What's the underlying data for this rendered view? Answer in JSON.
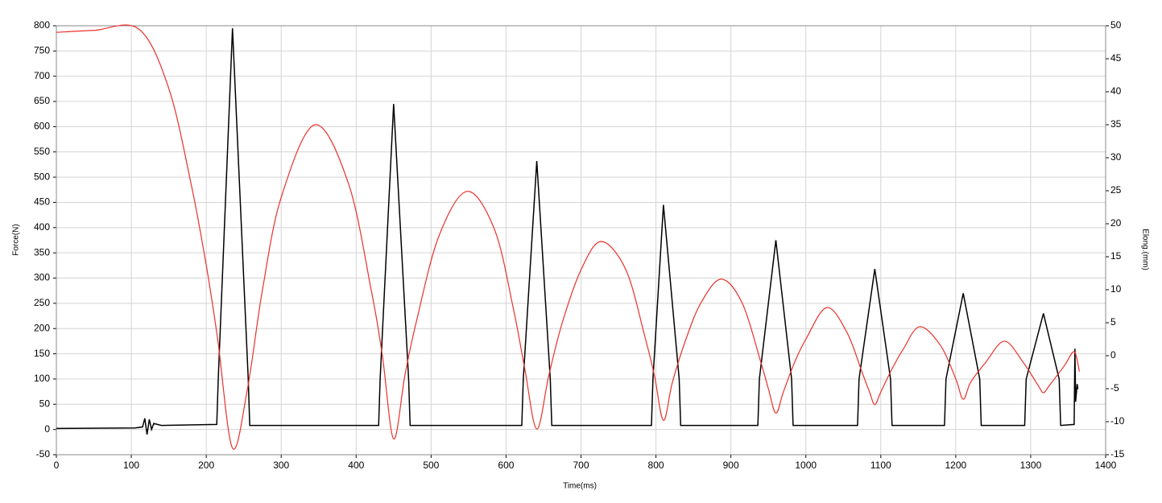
{
  "chart_data": {
    "type": "line",
    "xlabel": "Time(ms)",
    "ylabel": "Force(N)",
    "y2label": "Elong.(mm)",
    "xlim": [
      0,
      1400
    ],
    "xticks": [
      0,
      100,
      200,
      300,
      400,
      500,
      600,
      700,
      800,
      900,
      1000,
      1100,
      1200,
      1300,
      1400
    ],
    "ylim": [
      -50,
      800
    ],
    "yticks": [
      -50,
      0,
      50,
      100,
      150,
      200,
      250,
      300,
      350,
      400,
      450,
      500,
      550,
      600,
      650,
      700,
      750,
      800
    ],
    "y2lim": [
      -15,
      50
    ],
    "y2ticks": [
      -15,
      -10,
      -5,
      0,
      5,
      10,
      15,
      20,
      25,
      30,
      35,
      40,
      45,
      50
    ],
    "grid": true,
    "series": [
      {
        "color": "#000000",
        "axis": "y",
        "x": [
          0,
          105,
          115,
          118,
          121,
          124,
          127,
          130,
          140,
          214,
          216,
          235,
          256,
          258,
          430,
          432,
          450,
          470,
          472,
          621,
          623,
          641,
          659,
          661,
          794,
          796,
          810,
          831,
          833,
          936,
          938,
          960,
          981,
          983,
          1069,
          1071,
          1092,
          1113,
          1115,
          1185,
          1187,
          1210,
          1232,
          1234,
          1292,
          1294,
          1317,
          1338,
          1340,
          1358,
          1359,
          1360,
          1362,
          1363
        ],
        "values": [
          2,
          3,
          5,
          22,
          -10,
          20,
          0,
          12,
          8,
          10,
          100,
          795,
          100,
          8,
          8,
          100,
          645,
          100,
          8,
          8,
          100,
          532,
          100,
          8,
          8,
          100,
          445,
          100,
          8,
          8,
          100,
          375,
          100,
          8,
          8,
          100,
          318,
          100,
          8,
          8,
          100,
          270,
          100,
          8,
          8,
          100,
          230,
          100,
          8,
          10,
          160,
          55,
          90,
          80
        ]
      },
      {
        "color": "#e8312a",
        "axis": "y2",
        "x": [
          0,
          50,
          110,
          150,
          180,
          200,
          215,
          235,
          255,
          275,
          300,
          345,
          390,
          420,
          435,
          450,
          465,
          480,
          510,
          548,
          585,
          610,
          625,
          641,
          657,
          675,
          700,
          727,
          760,
          785,
          798,
          810,
          822,
          840,
          860,
          887,
          915,
          940,
          950,
          960,
          970,
          985,
          1000,
          1028,
          1055,
          1075,
          1085,
          1092,
          1100,
          1115,
          1130,
          1152,
          1180,
          1200,
          1210,
          1220,
          1240,
          1265,
          1290,
          1310,
          1317,
          1325,
          1345,
          1358,
          1365
        ],
        "values": [
          49,
          49.3,
          49.5,
          40.5,
          25.9,
          13.7,
          2.7,
          -14,
          -5,
          10,
          24,
          35,
          26,
          10,
          0,
          -12.6,
          -3,
          5,
          18,
          24.9,
          19,
          7,
          -2,
          -11.1,
          -3,
          5,
          13,
          17.3,
          13,
          3,
          -3,
          -9.8,
          -4,
          2.5,
          8,
          11.6,
          8,
          -1,
          -5,
          -8.7,
          -5.5,
          -1,
          2.5,
          7.3,
          3.5,
          -2.5,
          -5.5,
          -7.4,
          -5.5,
          -2,
          1,
          4.4,
          1.5,
          -3.5,
          -6.6,
          -4,
          -1,
          2.2,
          -1,
          -4.5,
          -5.6,
          -4.5,
          -1.5,
          0.6,
          -2.4
        ]
      }
    ]
  }
}
